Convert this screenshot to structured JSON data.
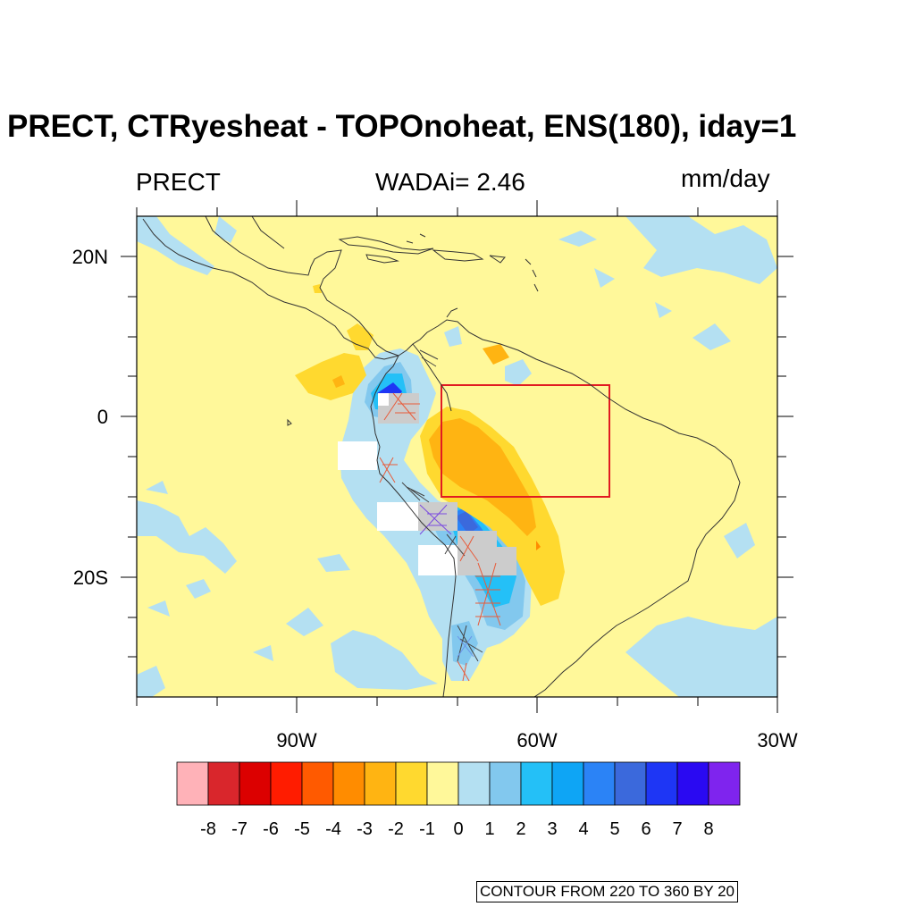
{
  "title": "PRECT, CTRyesheat - TOPOnoheat, ENS(180), iday=1",
  "subtitle_left": "PRECT",
  "subtitle_center": "WADAi= 2.46",
  "subtitle_right": "mm/day",
  "map": {
    "lon_range": [
      -110,
      -30
    ],
    "lat_range": [
      -35,
      25
    ],
    "lon_tick_labels": [
      "90W",
      "60W",
      "30W"
    ],
    "lat_tick_labels": [
      "20N",
      "0",
      "20S"
    ],
    "highlight_box": {
      "lon": [
        -73,
        -52
      ],
      "lat": [
        -10,
        4
      ],
      "color": "#e11b22"
    },
    "background_color": "#fff89a",
    "land_outline_color": "#333333"
  },
  "colorbar": {
    "labels": [
      "-8",
      "-7",
      "-6",
      "-5",
      "-4",
      "-3",
      "-2",
      "-1",
      "0",
      "1",
      "2",
      "3",
      "4",
      "5",
      "6",
      "7",
      "8"
    ],
    "colors": [
      "#ffb2b8",
      "#d9262c",
      "#dc0000",
      "#ff1c00",
      "#ff5a00",
      "#ff8c00",
      "#ffb412",
      "#ffd92f",
      "#fff89a",
      "#b4e0f2",
      "#82c8ee",
      "#24c0f7",
      "#0ea5f5",
      "#2b83f6",
      "#3b69dc",
      "#1e36f5",
      "#2a09f2",
      "#7f24ee"
    ]
  },
  "contour_note": "CONTOUR FROM 220 TO 360 BY 20"
}
